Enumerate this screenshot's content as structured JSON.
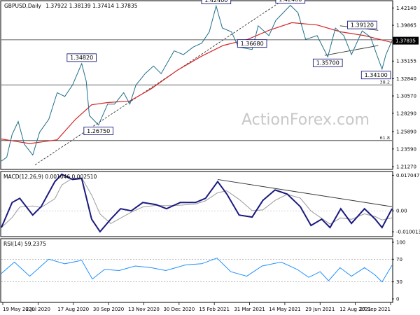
{
  "chart_data": {
    "type": "line",
    "symbol": "GBPUSD",
    "timeframe": "Daily",
    "header": {
      "symbol_label": "GBPUSD,Daily",
      "ohlc_label": "1.37922 1.38139 1.37414 1.37835"
    },
    "watermark": "ActionForex.com",
    "x_labels": [
      "19 May 2020",
      "2 Jul 2020",
      "17 Aug 2020",
      "30 Sep 2020",
      "13 Nov 2020",
      "30 Dec 2020",
      "15 Feb 2021",
      "31 Mar 2021",
      "14 May 2021",
      "29 Jun 2021",
      "12 Aug 2021",
      "27 Sep 2021"
    ],
    "x_range": [
      "2020-05-19",
      "2021-10-12"
    ],
    "price_panel": {
      "ylim": [
        1.21,
        1.43
      ],
      "y_ticks": [
        "1.42140",
        "1.39865",
        "1.37835",
        "1.35155",
        "1.32840",
        "1.30570",
        "1.28290",
        "1.25890",
        "1.23590",
        "1.21270"
      ],
      "y_tick_values": [
        1.4214,
        1.39865,
        1.37835,
        1.35155,
        1.3284,
        1.3057,
        1.2829,
        1.2589,
        1.2359,
        1.2127
      ],
      "current_price": "1.37835",
      "current_price_value": 1.37835,
      "horizontal_levels": [
        {
          "value": 1.3795,
          "label": ""
        },
        {
          "value": 1.3202,
          "label": "38.2"
        },
        {
          "value": 1.247,
          "label": "61.8"
        }
      ],
      "price_path": [
        {
          "date": "2020-05-19",
          "value": 1.22
        },
        {
          "date": "2020-05-26",
          "value": 1.225
        },
        {
          "date": "2020-06-02",
          "value": 1.255
        },
        {
          "date": "2020-06-10",
          "value": 1.272
        },
        {
          "date": "2020-06-18",
          "value": 1.242
        },
        {
          "date": "2020-06-29",
          "value": 1.228
        },
        {
          "date": "2020-07-08",
          "value": 1.258
        },
        {
          "date": "2020-07-20",
          "value": 1.275
        },
        {
          "date": "2020-07-31",
          "value": 1.31
        },
        {
          "date": "2020-08-10",
          "value": 1.305
        },
        {
          "date": "2020-08-20",
          "value": 1.32
        },
        {
          "date": "2020-09-01",
          "value": 1.3482
        },
        {
          "date": "2020-09-07",
          "value": 1.325
        },
        {
          "date": "2020-09-11",
          "value": 1.28
        },
        {
          "date": "2020-09-23",
          "value": 1.2675
        },
        {
          "date": "2020-10-05",
          "value": 1.295
        },
        {
          "date": "2020-10-14",
          "value": 1.295
        },
        {
          "date": "2020-10-26",
          "value": 1.31
        },
        {
          "date": "2020-11-03",
          "value": 1.295
        },
        {
          "date": "2020-11-11",
          "value": 1.32
        },
        {
          "date": "2020-11-23",
          "value": 1.335
        },
        {
          "date": "2020-12-04",
          "value": 1.345
        },
        {
          "date": "2020-12-14",
          "value": 1.335
        },
        {
          "date": "2020-12-31",
          "value": 1.365
        },
        {
          "date": "2021-01-12",
          "value": 1.36
        },
        {
          "date": "2021-01-25",
          "value": 1.37
        },
        {
          "date": "2021-02-05",
          "value": 1.375
        },
        {
          "date": "2021-02-15",
          "value": 1.39
        },
        {
          "date": "2021-02-24",
          "value": 1.424
        },
        {
          "date": "2021-03-04",
          "value": 1.395
        },
        {
          "date": "2021-03-16",
          "value": 1.39
        },
        {
          "date": "2021-03-25",
          "value": 1.37
        },
        {
          "date": "2021-04-12",
          "value": 1.3668
        },
        {
          "date": "2021-04-20",
          "value": 1.398
        },
        {
          "date": "2021-05-04",
          "value": 1.385
        },
        {
          "date": "2021-05-13",
          "value": 1.405
        },
        {
          "date": "2021-06-01",
          "value": 1.4248
        },
        {
          "date": "2021-06-11",
          "value": 1.415
        },
        {
          "date": "2021-06-21",
          "value": 1.38
        },
        {
          "date": "2021-07-06",
          "value": 1.385
        },
        {
          "date": "2021-07-20",
          "value": 1.357
        },
        {
          "date": "2021-07-30",
          "value": 1.395
        },
        {
          "date": "2021-08-10",
          "value": 1.385
        },
        {
          "date": "2021-08-20",
          "value": 1.36
        },
        {
          "date": "2021-09-03",
          "value": 1.3912
        },
        {
          "date": "2021-09-14",
          "value": 1.383
        },
        {
          "date": "2021-09-22",
          "value": 1.36
        },
        {
          "date": "2021-09-29",
          "value": 1.341
        },
        {
          "date": "2021-10-04",
          "value": 1.36
        },
        {
          "date": "2021-10-12",
          "value": 1.3784
        }
      ],
      "moving_average": [
        {
          "date": "2020-05-19",
          "value": 1.249
        },
        {
          "date": "2020-06-25",
          "value": 1.243
        },
        {
          "date": "2020-07-31",
          "value": 1.248
        },
        {
          "date": "2020-08-24",
          "value": 1.275
        },
        {
          "date": "2020-09-14",
          "value": 1.294
        },
        {
          "date": "2020-10-05",
          "value": 1.297
        },
        {
          "date": "2020-11-03",
          "value": 1.299
        },
        {
          "date": "2020-12-01",
          "value": 1.315
        },
        {
          "date": "2021-01-05",
          "value": 1.34
        },
        {
          "date": "2021-02-05",
          "value": 1.358
        },
        {
          "date": "2021-03-05",
          "value": 1.372
        },
        {
          "date": "2021-04-06",
          "value": 1.38
        },
        {
          "date": "2021-05-04",
          "value": 1.392
        },
        {
          "date": "2021-06-03",
          "value": 1.402
        },
        {
          "date": "2021-07-06",
          "value": 1.399
        },
        {
          "date": "2021-08-06",
          "value": 1.39
        },
        {
          "date": "2021-09-06",
          "value": 1.385
        },
        {
          "date": "2021-10-12",
          "value": 1.376
        }
      ],
      "trendlines": [
        {
          "from": {
            "date": "2020-07-02",
            "value": 1.215
          },
          "to": {
            "date": "2021-05-20",
            "value": 1.43
          },
          "style": "dashed"
        },
        {
          "from": {
            "date": "2021-07-16",
            "value": 1.359
          },
          "to": {
            "date": "2021-09-24",
            "value": 1.372
          },
          "style": "solid"
        },
        {
          "from": {
            "date": "2021-08-05",
            "value": 1.398
          },
          "to": {
            "date": "2021-09-24",
            "value": 1.392
          },
          "style": "solid"
        }
      ],
      "annotations": [
        {
          "text": "1.42400",
          "date": "2021-02-24",
          "value": 1.424
        },
        {
          "text": "1.42480",
          "date": "2021-06-01",
          "value": 1.4248
        },
        {
          "text": "1.34820",
          "date": "2020-09-01",
          "value": 1.3482
        },
        {
          "text": "1.36680",
          "date": "2021-04-12",
          "value": 1.3668
        },
        {
          "text": "1.39120",
          "date": "2021-09-03",
          "value": 1.3912
        },
        {
          "text": "1.35700",
          "date": "2021-07-20",
          "value": 1.357
        },
        {
          "text": "1.26750",
          "date": "2020-09-23",
          "value": 1.2675
        },
        {
          "text": "1.34100",
          "date": "2021-09-29",
          "value": 1.341
        }
      ]
    },
    "macd_panel": {
      "label": "MACD(12,26,9) 0.001046 0.002510",
      "ylim": [
        -0.012,
        0.0185
      ],
      "y_ticks": [
        "0.017047",
        "0.00",
        "-0.010013"
      ],
      "y_tick_values": [
        0.017047,
        0.0,
        -0.010013
      ],
      "macd": [
        {
          "date": "2020-05-19",
          "value": -0.008
        },
        {
          "date": "2020-06-02",
          "value": 0.004
        },
        {
          "date": "2020-06-12",
          "value": 0.006
        },
        {
          "date": "2020-06-29",
          "value": -0.002
        },
        {
          "date": "2020-07-10",
          "value": 0.002
        },
        {
          "date": "2020-07-28",
          "value": 0.014
        },
        {
          "date": "2020-08-06",
          "value": 0.0175
        },
        {
          "date": "2020-08-20",
          "value": 0.015
        },
        {
          "date": "2020-09-01",
          "value": 0.0155
        },
        {
          "date": "2020-09-14",
          "value": -0.004
        },
        {
          "date": "2020-09-25",
          "value": -0.01
        },
        {
          "date": "2020-10-09",
          "value": -0.004
        },
        {
          "date": "2020-10-22",
          "value": 0.001
        },
        {
          "date": "2020-11-05",
          "value": 0.0
        },
        {
          "date": "2020-11-20",
          "value": 0.004
        },
        {
          "date": "2020-12-07",
          "value": 0.003
        },
        {
          "date": "2020-12-21",
          "value": 0.001
        },
        {
          "date": "2021-01-08",
          "value": 0.004
        },
        {
          "date": "2021-01-28",
          "value": 0.004
        },
        {
          "date": "2021-02-10",
          "value": 0.006
        },
        {
          "date": "2021-02-26",
          "value": 0.014
        },
        {
          "date": "2021-03-10",
          "value": 0.008
        },
        {
          "date": "2021-03-26",
          "value": -0.002
        },
        {
          "date": "2021-04-12",
          "value": -0.003
        },
        {
          "date": "2021-04-26",
          "value": 0.005
        },
        {
          "date": "2021-05-12",
          "value": 0.01
        },
        {
          "date": "2021-05-28",
          "value": 0.008
        },
        {
          "date": "2021-06-14",
          "value": 0.002
        },
        {
          "date": "2021-06-28",
          "value": -0.007
        },
        {
          "date": "2021-07-12",
          "value": -0.004
        },
        {
          "date": "2021-07-23",
          "value": -0.008
        },
        {
          "date": "2021-08-06",
          "value": 0.001
        },
        {
          "date": "2021-08-20",
          "value": -0.006
        },
        {
          "date": "2021-09-06",
          "value": 0.001
        },
        {
          "date": "2021-09-20",
          "value": -0.004
        },
        {
          "date": "2021-09-29",
          "value": -0.008
        },
        {
          "date": "2021-10-12",
          "value": 0.001
        }
      ],
      "trendline": {
        "from": {
          "date": "2021-02-26",
          "value": 0.015
        },
        "to": {
          "date": "2021-10-12",
          "value": 0.002
        }
      }
    },
    "rsi_panel": {
      "label": "RSI(14) 59.2375",
      "ylim": [
        0,
        100
      ],
      "y_ticks": [
        "100",
        "70",
        "30",
        "0"
      ],
      "y_tick_values": [
        100,
        70,
        30,
        0
      ],
      "rsi": [
        {
          "date": "2020-05-19",
          "value": 45
        },
        {
          "date": "2020-06-05",
          "value": 65
        },
        {
          "date": "2020-06-25",
          "value": 40
        },
        {
          "date": "2020-07-20",
          "value": 70
        },
        {
          "date": "2020-08-10",
          "value": 62
        },
        {
          "date": "2020-09-01",
          "value": 68
        },
        {
          "date": "2020-09-15",
          "value": 35
        },
        {
          "date": "2020-10-01",
          "value": 52
        },
        {
          "date": "2020-10-20",
          "value": 50
        },
        {
          "date": "2020-11-10",
          "value": 58
        },
        {
          "date": "2020-12-01",
          "value": 55
        },
        {
          "date": "2020-12-20",
          "value": 50
        },
        {
          "date": "2021-01-15",
          "value": 60
        },
        {
          "date": "2021-02-05",
          "value": 62
        },
        {
          "date": "2021-02-25",
          "value": 72
        },
        {
          "date": "2021-03-15",
          "value": 48
        },
        {
          "date": "2021-04-05",
          "value": 40
        },
        {
          "date": "2021-04-25",
          "value": 58
        },
        {
          "date": "2021-05-20",
          "value": 65
        },
        {
          "date": "2021-06-10",
          "value": 52
        },
        {
          "date": "2021-06-25",
          "value": 38
        },
        {
          "date": "2021-07-10",
          "value": 48
        },
        {
          "date": "2021-07-21",
          "value": 32
        },
        {
          "date": "2021-08-05",
          "value": 55
        },
        {
          "date": "2021-08-20",
          "value": 40
        },
        {
          "date": "2021-09-06",
          "value": 55
        },
        {
          "date": "2021-09-20",
          "value": 42
        },
        {
          "date": "2021-09-29",
          "value": 30
        },
        {
          "date": "2021-10-12",
          "value": 59.2
        }
      ]
    },
    "colors": {
      "price": "#1f6f8b",
      "moving_average": "#d62728",
      "macd": "#1a1a80",
      "signal": "#9a9a9a",
      "rsi": "#1e90ff",
      "label_box": "#1a1a80",
      "label_box_fill": "#ffffff",
      "current_price_box": "#000000",
      "levels": "#333333",
      "trendline": "#333333"
    }
  }
}
